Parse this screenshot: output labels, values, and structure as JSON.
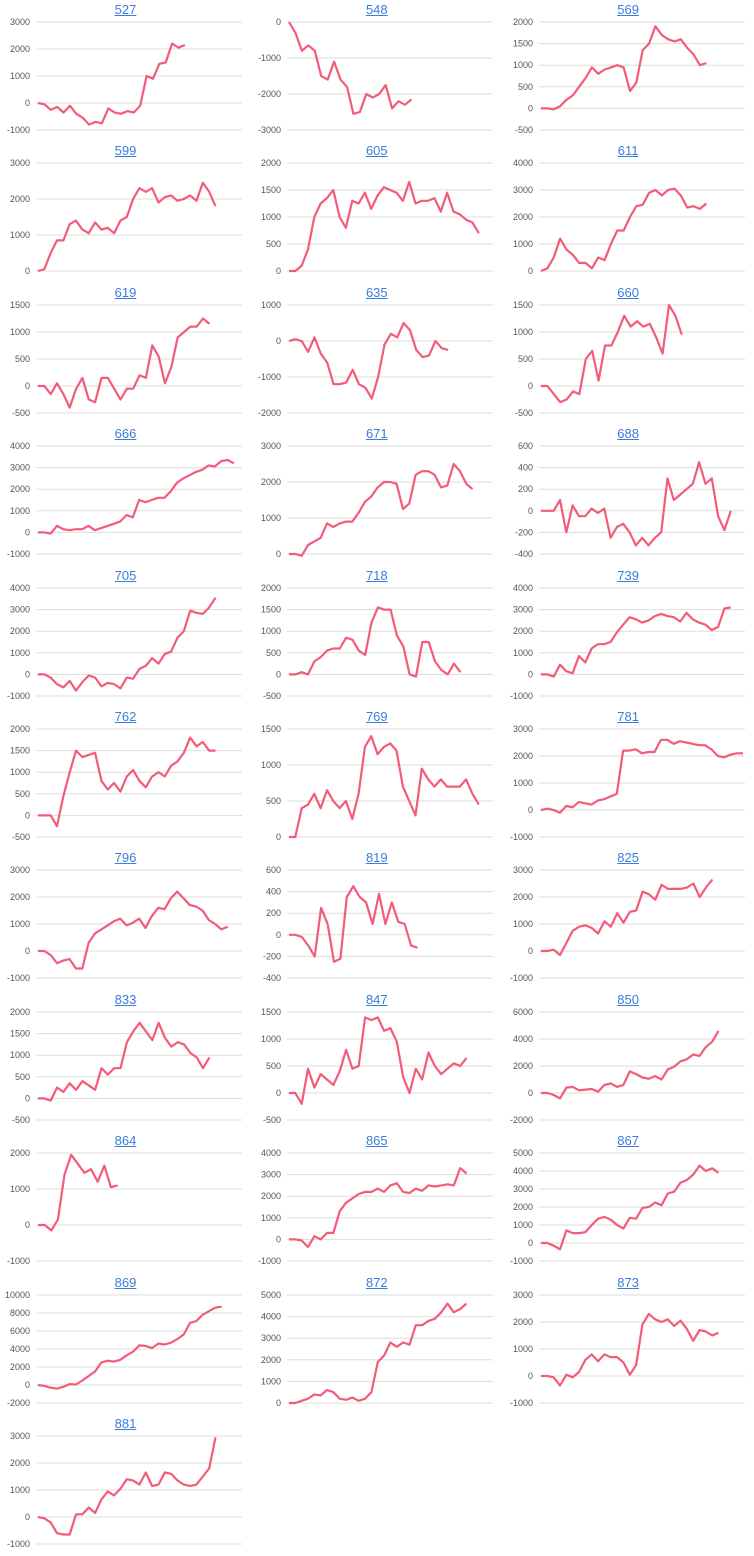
{
  "colors": {
    "line": "#f25c78",
    "grid": "#dddddd",
    "title": "#3b7ddd"
  },
  "chart_data": [
    {
      "type": "line",
      "title": "527",
      "yticks": [
        -1000,
        0,
        1000,
        2000,
        3000
      ],
      "values": [
        0,
        -50,
        -250,
        -150,
        -350,
        -100,
        -400,
        -550,
        -800,
        -700,
        -750,
        -200,
        -350,
        -400,
        -300,
        -350,
        -100,
        1000,
        900,
        1450,
        1500,
        2200,
        2050,
        2150
      ]
    },
    {
      "type": "line",
      "title": "548",
      "yticks": [
        -3000,
        -2000,
        -1000,
        0
      ],
      "values": [
        0,
        -300,
        -800,
        -650,
        -800,
        -1500,
        -1600,
        -1100,
        -1600,
        -1800,
        -2550,
        -2500,
        -2000,
        -2100,
        -2000,
        -1750,
        -2400,
        -2200,
        -2300,
        -2150
      ]
    },
    {
      "type": "line",
      "title": "569",
      "yticks": [
        -500,
        0,
        500,
        1000,
        1500,
        2000
      ],
      "values": [
        0,
        0,
        -20,
        50,
        200,
        300,
        500,
        700,
        950,
        800,
        900,
        950,
        1000,
        950,
        400,
        600,
        1350,
        1500,
        1900,
        1700,
        1600,
        1550,
        1600,
        1400,
        1250,
        1000,
        1050
      ]
    },
    {
      "type": "line",
      "title": "599",
      "yticks": [
        0,
        1000,
        2000,
        3000
      ],
      "values": [
        0,
        50,
        500,
        850,
        850,
        1300,
        1400,
        1150,
        1050,
        1350,
        1150,
        1200,
        1050,
        1400,
        1500,
        2000,
        2300,
        2200,
        2300,
        1900,
        2050,
        2100,
        1950,
        2000,
        2100,
        1950,
        2450,
        2200,
        1800
      ]
    },
    {
      "type": "line",
      "title": "605",
      "yticks": [
        0,
        500,
        1000,
        1500,
        2000
      ],
      "values": [
        0,
        0,
        100,
        400,
        1000,
        1250,
        1350,
        1500,
        1000,
        800,
        1300,
        1250,
        1450,
        1150,
        1400,
        1550,
        1500,
        1450,
        1300,
        1650,
        1250,
        1300,
        1300,
        1350,
        1100,
        1450,
        1100,
        1050,
        950,
        900,
        700
      ]
    },
    {
      "type": "line",
      "title": "611",
      "yticks": [
        0,
        1000,
        2000,
        3000,
        4000
      ],
      "values": [
        0,
        100,
        500,
        1200,
        800,
        600,
        300,
        300,
        100,
        500,
        400,
        1000,
        1500,
        1500,
        2000,
        2400,
        2450,
        2900,
        3000,
        2800,
        3000,
        3050,
        2800,
        2350,
        2400,
        2300,
        2500
      ]
    },
    {
      "type": "line",
      "title": "619",
      "yticks": [
        -500,
        0,
        500,
        1000,
        1500
      ],
      "values": [
        0,
        0,
        -150,
        50,
        -150,
        -400,
        -50,
        150,
        -250,
        -300,
        150,
        150,
        -50,
        -250,
        -50,
        -50,
        200,
        150,
        750,
        550,
        50,
        350,
        900,
        1000,
        1100,
        1100,
        1250,
        1150
      ]
    },
    {
      "type": "line",
      "title": "635",
      "yticks": [
        -2000,
        -1000,
        0,
        1000
      ],
      "values": [
        0,
        50,
        0,
        -300,
        100,
        -350,
        -600,
        -1200,
        -1200,
        -1150,
        -800,
        -1200,
        -1300,
        -1600,
        -1000,
        -100,
        200,
        100,
        500,
        300,
        -250,
        -450,
        -400,
        0,
        -200,
        -250
      ]
    },
    {
      "type": "line",
      "title": "660",
      "yticks": [
        -500,
        0,
        500,
        1000,
        1500
      ],
      "values": [
        0,
        0,
        -150,
        -300,
        -250,
        -100,
        -150,
        500,
        650,
        100,
        750,
        750,
        1000,
        1300,
        1100,
        1200,
        1100,
        1150,
        900,
        600,
        1500,
        1300,
        950
      ]
    },
    {
      "type": "line",
      "title": "666",
      "yticks": [
        -1000,
        0,
        1000,
        2000,
        3000,
        4000
      ],
      "values": [
        0,
        0,
        -50,
        300,
        150,
        100,
        150,
        150,
        300,
        100,
        200,
        300,
        400,
        500,
        800,
        700,
        1500,
        1400,
        1500,
        1600,
        1600,
        1900,
        2300,
        2500,
        2650,
        2800,
        2900,
        3100,
        3050,
        3300,
        3350,
        3200
      ]
    },
    {
      "type": "line",
      "title": "671",
      "yticks": [
        0,
        1000,
        2000,
        3000
      ],
      "values": [
        0,
        0,
        -50,
        250,
        350,
        450,
        850,
        750,
        850,
        900,
        900,
        1150,
        1450,
        1600,
        1850,
        2000,
        2000,
        1950,
        1250,
        1400,
        2200,
        2300,
        2300,
        2200,
        1850,
        1900,
        2500,
        2300,
        1950,
        1800
      ]
    },
    {
      "type": "line",
      "title": "688",
      "yticks": [
        -400,
        -200,
        0,
        200,
        400,
        600
      ],
      "values": [
        0,
        0,
        0,
        100,
        -200,
        50,
        -50,
        -50,
        20,
        -20,
        20,
        -250,
        -150,
        -120,
        -200,
        -320,
        -250,
        -320,
        -250,
        -200,
        300,
        100,
        150,
        200,
        250,
        450,
        250,
        300,
        -50,
        -180,
        0
      ]
    },
    {
      "type": "line",
      "title": "705",
      "yticks": [
        -1000,
        0,
        1000,
        2000,
        3000,
        4000
      ],
      "values": [
        0,
        0,
        -150,
        -450,
        -600,
        -300,
        -750,
        -350,
        -50,
        -150,
        -550,
        -400,
        -450,
        -650,
        -150,
        -200,
        250,
        400,
        750,
        500,
        950,
        1050,
        1700,
        2000,
        2950,
        2850,
        2800,
        3100,
        3550
      ]
    },
    {
      "type": "line",
      "title": "718",
      "yticks": [
        -500,
        0,
        500,
        1000,
        1500,
        2000
      ],
      "values": [
        0,
        0,
        50,
        0,
        300,
        400,
        550,
        600,
        600,
        850,
        800,
        550,
        450,
        1200,
        1550,
        1500,
        1500,
        900,
        650,
        0,
        -50,
        750,
        750,
        300,
        100,
        0,
        250,
        50
      ]
    },
    {
      "type": "line",
      "title": "739",
      "yticks": [
        -1000,
        0,
        1000,
        2000,
        3000,
        4000
      ],
      "values": [
        0,
        0,
        -100,
        450,
        150,
        50,
        850,
        550,
        1200,
        1400,
        1400,
        1500,
        1950,
        2300,
        2650,
        2550,
        2400,
        2500,
        2700,
        2800,
        2700,
        2650,
        2450,
        2850,
        2550,
        2400,
        2300,
        2050,
        2200,
        3050,
        3100
      ]
    },
    {
      "type": "line",
      "title": "762",
      "yticks": [
        -500,
        0,
        500,
        1000,
        1500,
        2000
      ],
      "values": [
        0,
        0,
        0,
        -250,
        450,
        1000,
        1500,
        1350,
        1400,
        1450,
        800,
        600,
        750,
        550,
        900,
        1050,
        800,
        650,
        900,
        1000,
        900,
        1150,
        1250,
        1450,
        1800,
        1600,
        1700,
        1500,
        1500
      ]
    },
    {
      "type": "line",
      "title": "769",
      "yticks": [
        0,
        500,
        1000,
        1500
      ],
      "values": [
        0,
        0,
        400,
        450,
        600,
        400,
        650,
        500,
        400,
        500,
        250,
        600,
        1250,
        1400,
        1150,
        1250,
        1300,
        1200,
        700,
        500,
        300,
        950,
        800,
        700,
        800,
        700,
        700,
        700,
        800,
        600,
        450
      ]
    },
    {
      "type": "line",
      "title": "781",
      "yticks": [
        -1000,
        0,
        1000,
        2000,
        3000
      ],
      "values": [
        0,
        50,
        0,
        -100,
        150,
        100,
        300,
        250,
        200,
        350,
        400,
        500,
        600,
        2200,
        2200,
        2250,
        2100,
        2150,
        2150,
        2600,
        2600,
        2450,
        2550,
        2500,
        2450,
        2400,
        2400,
        2250,
        2000,
        1950,
        2050,
        2100,
        2100
      ]
    },
    {
      "type": "line",
      "title": "796",
      "yticks": [
        -1000,
        0,
        1000,
        2000,
        3000
      ],
      "values": [
        0,
        0,
        -150,
        -450,
        -350,
        -300,
        -650,
        -650,
        300,
        650,
        800,
        950,
        1100,
        1200,
        950,
        1050,
        1200,
        850,
        1300,
        1600,
        1550,
        1950,
        2200,
        1950,
        1700,
        1650,
        1500,
        1150,
        1000,
        800,
        900
      ]
    },
    {
      "type": "line",
      "title": "819",
      "yticks": [
        -400,
        -200,
        0,
        200,
        400,
        600
      ],
      "values": [
        0,
        0,
        -20,
        -100,
        -200,
        250,
        100,
        -250,
        -220,
        350,
        450,
        350,
        300,
        100,
        380,
        100,
        300,
        120,
        100,
        -100,
        -120
      ]
    },
    {
      "type": "line",
      "title": "825",
      "yticks": [
        -1000,
        0,
        1000,
        2000,
        3000
      ],
      "values": [
        0,
        0,
        50,
        -150,
        300,
        750,
        900,
        950,
        850,
        650,
        1100,
        900,
        1400,
        1050,
        1450,
        1500,
        2200,
        2100,
        1900,
        2450,
        2300,
        2300,
        2300,
        2350,
        2500,
        2000,
        2350,
        2650
      ]
    },
    {
      "type": "line",
      "title": "833",
      "yticks": [
        -500,
        0,
        500,
        1000,
        1500,
        2000
      ],
      "values": [
        0,
        0,
        -50,
        250,
        150,
        350,
        200,
        400,
        300,
        200,
        700,
        550,
        700,
        700,
        1300,
        1550,
        1750,
        1550,
        1350,
        1750,
        1400,
        1200,
        1300,
        1250,
        1050,
        950,
        700,
        950
      ]
    },
    {
      "type": "line",
      "title": "847",
      "yticks": [
        -500,
        0,
        500,
        1000,
        1500
      ],
      "values": [
        0,
        0,
        -200,
        450,
        100,
        350,
        250,
        150,
        400,
        800,
        450,
        500,
        1400,
        1350,
        1400,
        1150,
        1200,
        950,
        300,
        0,
        450,
        250,
        750,
        500,
        350,
        450,
        550,
        500,
        650
      ]
    },
    {
      "type": "line",
      "title": "850",
      "yticks": [
        -2000,
        0,
        2000,
        4000,
        6000
      ],
      "values": [
        0,
        0,
        -150,
        -400,
        400,
        450,
        200,
        250,
        300,
        100,
        600,
        700,
        450,
        600,
        1600,
        1400,
        1150,
        1050,
        1250,
        1000,
        1750,
        1950,
        2350,
        2500,
        2850,
        2750,
        3400,
        3800,
        4600
      ]
    },
    {
      "type": "line",
      "title": "864",
      "yticks": [
        -1000,
        0,
        1000,
        2000
      ],
      "values": [
        0,
        0,
        -150,
        150,
        1400,
        1950,
        1700,
        1450,
        1550,
        1200,
        1650,
        1050,
        1100
      ]
    },
    {
      "type": "line",
      "title": "865",
      "yticks": [
        -1000,
        0,
        1000,
        2000,
        3000,
        4000
      ],
      "values": [
        0,
        0,
        -50,
        -350,
        150,
        0,
        300,
        300,
        1300,
        1700,
        1900,
        2100,
        2200,
        2200,
        2350,
        2200,
        2500,
        2600,
        2200,
        2150,
        2350,
        2250,
        2500,
        2450,
        2500,
        2550,
        2500,
        3300,
        3050
      ]
    },
    {
      "type": "line",
      "title": "867",
      "yticks": [
        -1000,
        0,
        1000,
        2000,
        3000,
        4000,
        5000
      ],
      "values": [
        0,
        0,
        -150,
        -350,
        700,
        550,
        550,
        600,
        1000,
        1350,
        1450,
        1300,
        1000,
        800,
        1400,
        1350,
        1950,
        2000,
        2250,
        2100,
        2750,
        2850,
        3350,
        3500,
        3800,
        4300,
        4000,
        4150,
        3900
      ]
    },
    {
      "type": "line",
      "title": "869",
      "yticks": [
        -2000,
        0,
        2000,
        4000,
        6000,
        8000,
        10000
      ],
      "values": [
        0,
        -100,
        -300,
        -400,
        -200,
        100,
        50,
        500,
        1000,
        1500,
        2500,
        2700,
        2600,
        2800,
        3300,
        3700,
        4400,
        4350,
        4100,
        4600,
        4500,
        4700,
        5100,
        5600,
        6900,
        7100,
        7800,
        8200,
        8600,
        8700
      ]
    },
    {
      "type": "line",
      "title": "872",
      "yticks": [
        0,
        1000,
        2000,
        3000,
        4000,
        5000
      ],
      "values": [
        0,
        0,
        100,
        200,
        400,
        350,
        600,
        500,
        200,
        150,
        250,
        100,
        200,
        500,
        1900,
        2200,
        2800,
        2600,
        2800,
        2700,
        3600,
        3600,
        3800,
        3900,
        4200,
        4600,
        4200,
        4350,
        4600
      ]
    },
    {
      "type": "line",
      "title": "873",
      "yticks": [
        -1000,
        0,
        1000,
        2000,
        3000
      ],
      "values": [
        0,
        0,
        -50,
        -350,
        50,
        -50,
        150,
        600,
        800,
        550,
        800,
        700,
        700,
        500,
        50,
        400,
        1900,
        2300,
        2100,
        2000,
        2100,
        1850,
        2050,
        1750,
        1300,
        1700,
        1650,
        1500,
        1600
      ]
    },
    {
      "type": "line",
      "title": "881",
      "yticks": [
        -1000,
        0,
        1000,
        2000,
        3000
      ],
      "values": [
        0,
        -50,
        -200,
        -600,
        -650,
        -650,
        100,
        100,
        350,
        150,
        650,
        950,
        800,
        1050,
        1400,
        1350,
        1200,
        1650,
        1150,
        1200,
        1650,
        1600,
        1350,
        1200,
        1150,
        1200,
        1500,
        1800,
        2950
      ]
    }
  ]
}
